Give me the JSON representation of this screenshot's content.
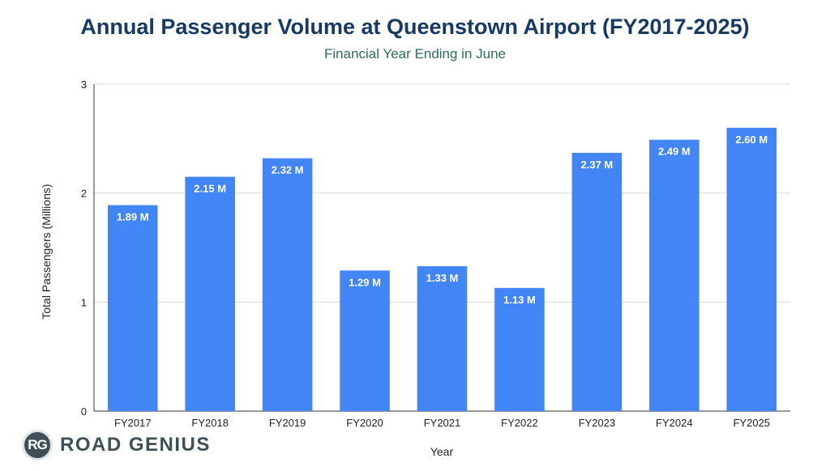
{
  "chart_data": {
    "type": "bar",
    "title": "Annual Passenger Volume at Queenstown Airport (FY2017-2025)",
    "subtitle": "Financial Year Ending in June",
    "xlabel": "Year",
    "ylabel": "Total Passengers (Millions)",
    "categories": [
      "FY2017",
      "FY2018",
      "FY2019",
      "FY2020",
      "FY2021",
      "FY2022",
      "FY2023",
      "FY2024",
      "FY2025"
    ],
    "values": [
      1.89,
      2.15,
      2.32,
      1.29,
      1.33,
      1.13,
      2.37,
      2.49,
      2.6
    ],
    "data_labels": [
      "1.89 M",
      "2.15 M",
      "2.32 M",
      "1.29 M",
      "1.33 M",
      "1.13 M",
      "2.37 M",
      "2.49 M",
      "2.60 M"
    ],
    "ylim": [
      0,
      3
    ],
    "yticks": [
      "0",
      "1",
      "2",
      "3"
    ],
    "grid": true,
    "bar_color": "#4285f4",
    "label_color": "#ffffff"
  },
  "branding": {
    "badge_text": "RG",
    "name": "ROAD GENIUS"
  }
}
